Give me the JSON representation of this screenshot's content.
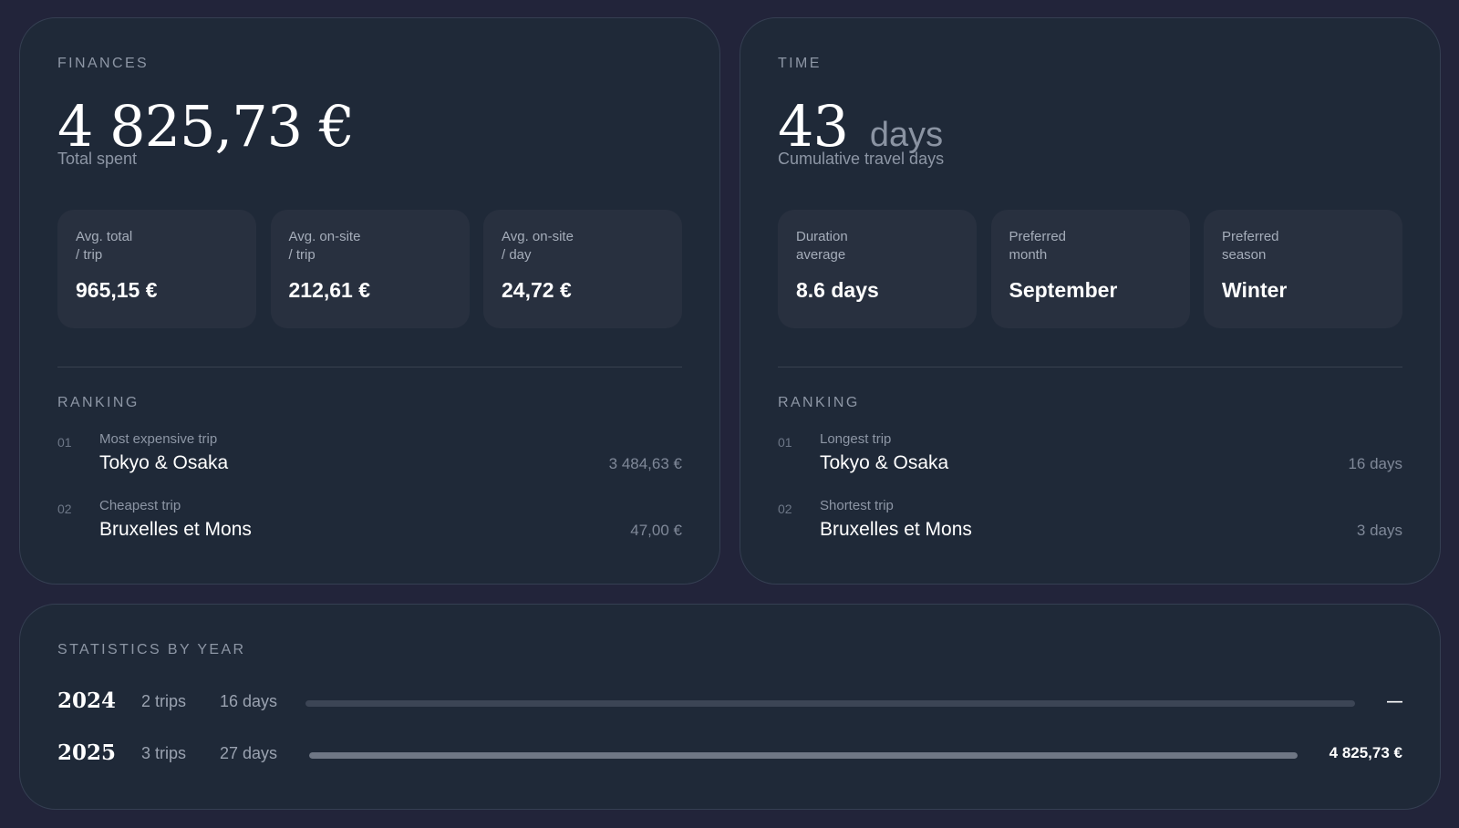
{
  "finances": {
    "eyebrow": "FINANCES",
    "total": "4 825,73 €",
    "total_caption": "Total spent",
    "tiles": [
      {
        "label": "Avg. total\n/ trip",
        "value": "965,15 €"
      },
      {
        "label": "Avg. on-site\n/ trip",
        "value": "212,61 €"
      },
      {
        "label": "Avg. on-site\n/ day",
        "value": "24,72 €"
      }
    ],
    "ranking_title": "RANKING",
    "ranking": [
      {
        "num": "01",
        "caption": "Most expensive trip",
        "name": "Tokyo & Osaka",
        "value": "3 484,63 €"
      },
      {
        "num": "02",
        "caption": "Cheapest trip",
        "name": "Bruxelles et Mons",
        "value": "47,00 €"
      }
    ]
  },
  "time": {
    "eyebrow": "TIME",
    "total": "43",
    "unit": "days",
    "total_caption": "Cumulative travel days",
    "tiles": [
      {
        "label": "Duration\naverage",
        "value": "8.6 days"
      },
      {
        "label": "Preferred\nmonth",
        "value": "September"
      },
      {
        "label": "Preferred\nseason",
        "value": "Winter"
      }
    ],
    "ranking_title": "RANKING",
    "ranking": [
      {
        "num": "01",
        "caption": "Longest trip",
        "name": "Tokyo & Osaka",
        "value": "16 days"
      },
      {
        "num": "02",
        "caption": "Shortest trip",
        "name": "Bruxelles et Mons",
        "value": "3 days"
      }
    ]
  },
  "years": {
    "title": "STATISTICS BY YEAR",
    "rows": [
      {
        "year": "2024",
        "trips": "2 trips",
        "days": "16 days",
        "fill_fraction": 1.0,
        "total": "—"
      },
      {
        "year": "2025",
        "trips": "3 trips",
        "days": "27 days",
        "fill_fraction": 1.0,
        "total": "4 825,73 €"
      }
    ]
  },
  "colors": {
    "background": "#22243a",
    "card": "#1f2938",
    "tile": "#28303f",
    "muted_text": "#8d96a5",
    "bar_fill": "#6f7785"
  }
}
